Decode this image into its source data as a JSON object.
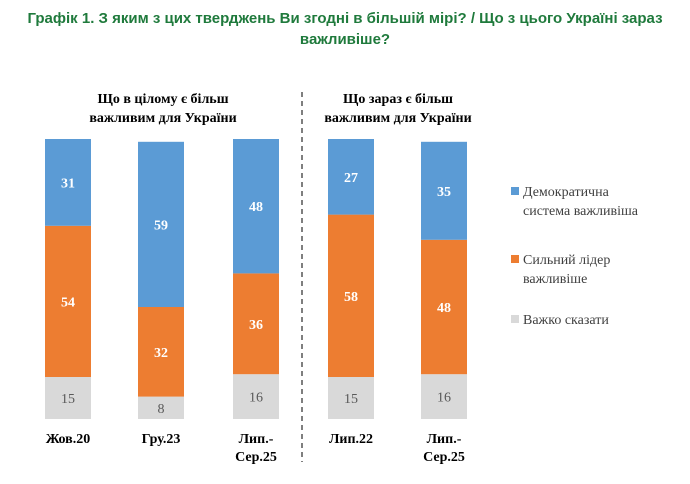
{
  "title_line1": "Графік 1. З яким з цих тверджень Ви згодні в більшій мірі? / Що з цього Україні зараз",
  "title_line2": "важливіше?",
  "chart_data": {
    "type": "bar",
    "stacked": true,
    "ylim": [
      0,
      100
    ],
    "groups": [
      {
        "title": [
          "Що в цілому є більш",
          "важливим для України"
        ],
        "categories": [
          [
            "Жов.20"
          ],
          [
            "Гру.23"
          ],
          [
            "Лип.-",
            "Сер.25"
          ]
        ]
      },
      {
        "title": [
          "Що зараз є більш",
          "важливим для України"
        ],
        "categories": [
          [
            "Лип.22"
          ],
          [
            "Лип.-",
            "Сер.25"
          ]
        ]
      }
    ],
    "series": [
      {
        "name": "Важко сказати",
        "color": "#d9d9d9",
        "text_color": "#595959",
        "values": [
          15,
          8,
          16,
          15,
          16
        ]
      },
      {
        "name": "Сильний лідер важливіше",
        "color": "#ed7d31",
        "text_color": "#ffffff",
        "values": [
          54,
          32,
          36,
          58,
          48
        ]
      },
      {
        "name": "Демократична система важливіша",
        "color": "#5b9bd5",
        "text_color": "#ffffff",
        "values": [
          31,
          59,
          48,
          27,
          35
        ]
      }
    ],
    "legend": {
      "placement": "right",
      "entries": [
        {
          "lines": [
            "Демократична",
            "система важливіша"
          ],
          "color": "#5b9bd5"
        },
        {
          "lines": [
            "Сильний лідер",
            "важливіше"
          ],
          "color": "#ed7d31"
        },
        {
          "lines": [
            "Важко сказати"
          ],
          "color": "#d9d9d9"
        }
      ]
    }
  }
}
